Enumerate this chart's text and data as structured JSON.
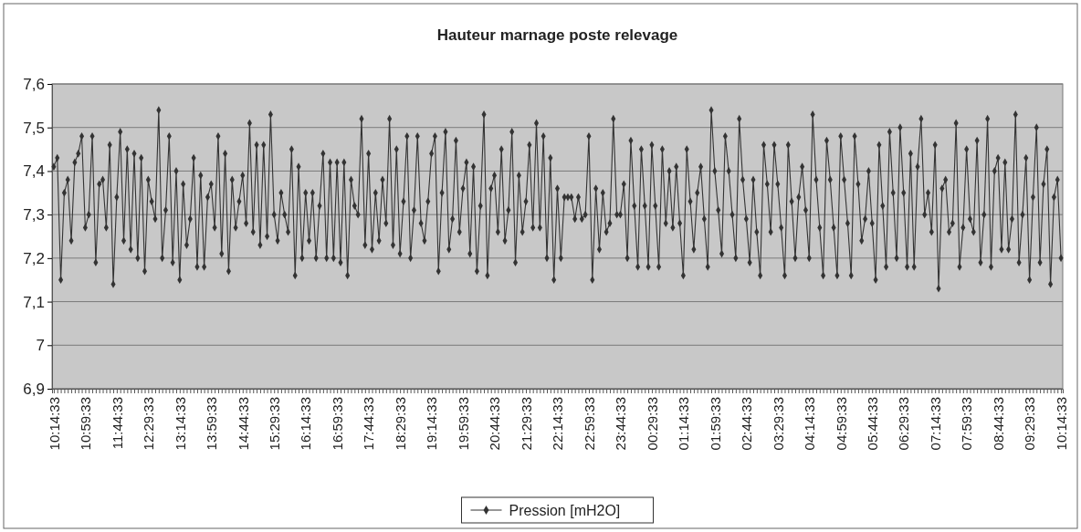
{
  "chart_data": {
    "type": "line",
    "title": "Hauteur marnage poste relevage",
    "ylim": [
      6.9,
      7.6
    ],
    "yticks": [
      {
        "value": 6.9,
        "label": "6,9"
      },
      {
        "value": 7,
        "label": "7"
      },
      {
        "value": 7.1,
        "label": "7,1"
      },
      {
        "value": 7.2,
        "label": "7,2"
      },
      {
        "value": 7.3,
        "label": "7,3"
      },
      {
        "value": 7.4,
        "label": "7,4"
      },
      {
        "value": 7.5,
        "label": "7,5"
      },
      {
        "value": 7.6,
        "label": "7,6"
      }
    ],
    "categories": [
      "10:14:33",
      null,
      null,
      null,
      null,
      null,
      null,
      null,
      null,
      "10:59:33",
      null,
      null,
      null,
      null,
      null,
      null,
      null,
      null,
      "11:44:33",
      null,
      null,
      null,
      null,
      null,
      null,
      null,
      null,
      "12:29:33",
      null,
      null,
      null,
      null,
      null,
      null,
      null,
      null,
      "13:14:33",
      null,
      null,
      null,
      null,
      null,
      null,
      null,
      null,
      "13:59:33",
      null,
      null,
      null,
      null,
      null,
      null,
      null,
      null,
      "14:44:33",
      null,
      null,
      null,
      null,
      null,
      null,
      null,
      null,
      "15:29:33",
      null,
      null,
      null,
      null,
      null,
      null,
      null,
      null,
      "16:14:33",
      null,
      null,
      null,
      null,
      null,
      null,
      null,
      null,
      "16:59:33",
      null,
      null,
      null,
      null,
      null,
      null,
      null,
      null,
      "17:44:33",
      null,
      null,
      null,
      null,
      null,
      null,
      null,
      null,
      "18:29:33",
      null,
      null,
      null,
      null,
      null,
      null,
      null,
      null,
      "19:14:33",
      null,
      null,
      null,
      null,
      null,
      null,
      null,
      null,
      "19:59:33",
      null,
      null,
      null,
      null,
      null,
      null,
      null,
      null,
      "20:44:33",
      null,
      null,
      null,
      null,
      null,
      null,
      null,
      null,
      "21:29:33",
      null,
      null,
      null,
      null,
      null,
      null,
      null,
      null,
      "22:14:33",
      null,
      null,
      null,
      null,
      null,
      null,
      null,
      null,
      "22:59:33",
      null,
      null,
      null,
      null,
      null,
      null,
      null,
      null,
      "23:44:33",
      null,
      null,
      null,
      null,
      null,
      null,
      null,
      null,
      "00:29:33",
      null,
      null,
      null,
      null,
      null,
      null,
      null,
      null,
      "01:14:33",
      null,
      null,
      null,
      null,
      null,
      null,
      null,
      null,
      "01:59:33",
      null,
      null,
      null,
      null,
      null,
      null,
      null,
      null,
      "02:44:33",
      null,
      null,
      null,
      null,
      null,
      null,
      null,
      null,
      "03:29:33",
      null,
      null,
      null,
      null,
      null,
      null,
      null,
      null,
      "04:14:33",
      null,
      null,
      null,
      null,
      null,
      null,
      null,
      null,
      "04:59:33",
      null,
      null,
      null,
      null,
      null,
      null,
      null,
      null,
      "05:44:33",
      null,
      null,
      null,
      null,
      null,
      null,
      null,
      null,
      "06:29:33",
      null,
      null,
      null,
      null,
      null,
      null,
      null,
      null,
      "07:14:33",
      null,
      null,
      null,
      null,
      null,
      null,
      null,
      null,
      "07:59:33",
      null,
      null,
      null,
      null,
      null,
      null,
      null,
      null,
      "08:44:33",
      null,
      null,
      null,
      null,
      null,
      null,
      null,
      null,
      "09:29:33",
      null,
      null,
      null,
      null,
      null,
      null,
      null,
      null,
      "10:14:33"
    ],
    "grid": "y",
    "legend": "bottom",
    "marker": "diamond",
    "line_style": "solid",
    "series": [
      {
        "name": "Pression [mH2O]",
        "color": "#333333",
        "values": [
          7.41,
          7.43,
          7.15,
          7.35,
          7.38,
          7.24,
          7.42,
          7.44,
          7.48,
          7.27,
          7.3,
          7.48,
          7.19,
          7.37,
          7.38,
          7.27,
          7.46,
          7.14,
          7.34,
          7.49,
          7.24,
          7.45,
          7.22,
          7.44,
          7.2,
          7.43,
          7.17,
          7.38,
          7.33,
          7.29,
          7.54,
          7.2,
          7.31,
          7.48,
          7.19,
          7.4,
          7.15,
          7.37,
          7.23,
          7.29,
          7.43,
          7.18,
          7.39,
          7.18,
          7.34,
          7.37,
          7.27,
          7.48,
          7.21,
          7.44,
          7.17,
          7.38,
          7.27,
          7.33,
          7.39,
          7.28,
          7.51,
          7.26,
          7.46,
          7.23,
          7.46,
          7.25,
          7.53,
          7.3,
          7.24,
          7.35,
          7.3,
          7.26,
          7.45,
          7.16,
          7.41,
          7.2,
          7.35,
          7.24,
          7.35,
          7.2,
          7.32,
          7.44,
          7.2,
          7.42,
          7.2,
          7.42,
          7.19,
          7.42,
          7.16,
          7.38,
          7.32,
          7.3,
          7.52,
          7.23,
          7.44,
          7.22,
          7.35,
          7.24,
          7.38,
          7.28,
          7.52,
          7.23,
          7.45,
          7.21,
          7.33,
          7.48,
          7.2,
          7.31,
          7.48,
          7.28,
          7.24,
          7.33,
          7.44,
          7.48,
          7.17,
          7.35,
          7.49,
          7.22,
          7.29,
          7.47,
          7.26,
          7.36,
          7.42,
          7.21,
          7.41,
          7.17,
          7.32,
          7.53,
          7.16,
          7.36,
          7.39,
          7.26,
          7.45,
          7.24,
          7.31,
          7.49,
          7.19,
          7.39,
          7.26,
          7.33,
          7.46,
          7.27,
          7.51,
          7.27,
          7.48,
          7.2,
          7.43,
          7.15,
          7.36,
          7.2,
          7.34,
          7.34,
          7.34,
          7.29,
          7.34,
          7.29,
          7.3,
          7.48,
          7.15,
          7.36,
          7.22,
          7.35,
          7.26,
          7.28,
          7.52,
          7.3,
          7.3,
          7.37,
          7.2,
          7.47,
          7.32,
          7.18,
          7.45,
          7.32,
          7.18,
          7.46,
          7.32,
          7.18,
          7.45,
          7.28,
          7.4,
          7.27,
          7.41,
          7.28,
          7.16,
          7.45,
          7.33,
          7.22,
          7.35,
          7.41,
          7.29,
          7.18,
          7.54,
          7.4,
          7.31,
          7.21,
          7.48,
          7.4,
          7.3,
          7.2,
          7.52,
          7.38,
          7.29,
          7.19,
          7.38,
          7.26,
          7.16,
          7.46,
          7.37,
          7.26,
          7.46,
          7.37,
          7.27,
          7.16,
          7.46,
          7.33,
          7.2,
          7.34,
          7.41,
          7.31,
          7.2,
          7.53,
          7.38,
          7.27,
          7.16,
          7.47,
          7.38,
          7.27,
          7.16,
          7.48,
          7.38,
          7.28,
          7.16,
          7.48,
          7.37,
          7.24,
          7.29,
          7.4,
          7.28,
          7.15,
          7.46,
          7.32,
          7.18,
          7.49,
          7.35,
          7.2,
          7.5,
          7.35,
          7.18,
          7.44,
          7.18,
          7.41,
          7.52,
          7.3,
          7.35,
          7.26,
          7.46,
          7.13,
          7.36,
          7.38,
          7.26,
          7.28,
          7.51,
          7.18,
          7.27,
          7.45,
          7.29,
          7.26,
          7.47,
          7.19,
          7.3,
          7.52,
          7.18,
          7.4,
          7.43,
          7.22,
          7.42,
          7.22,
          7.29,
          7.53,
          7.19,
          7.3,
          7.43,
          7.15,
          7.34,
          7.5,
          7.19,
          7.37,
          7.45,
          7.14,
          7.34,
          7.38,
          7.2
        ]
      }
    ]
  }
}
